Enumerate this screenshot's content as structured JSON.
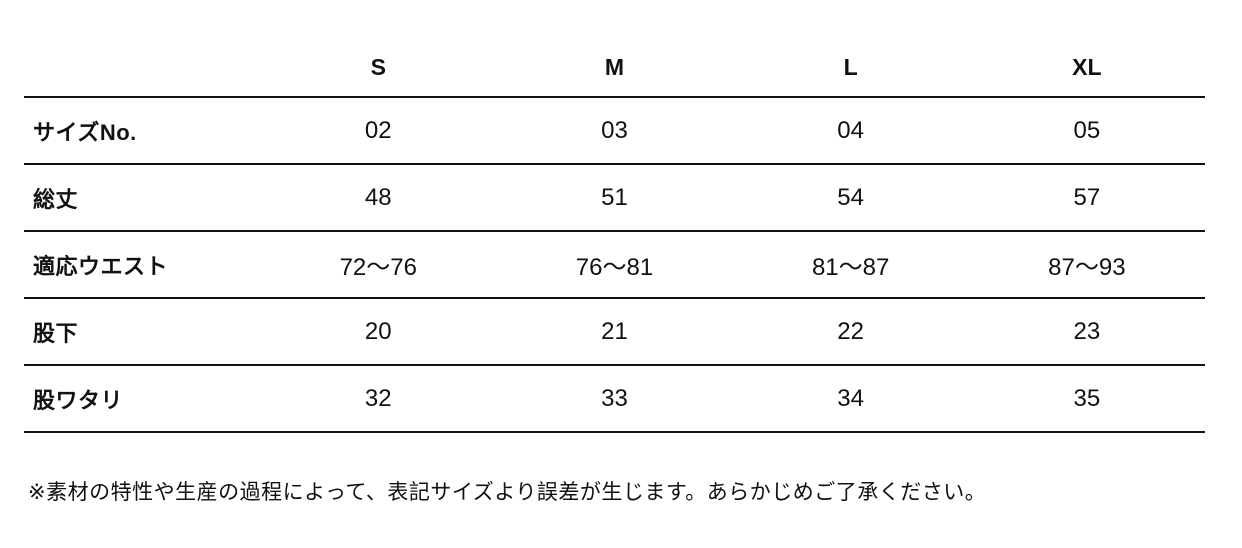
{
  "table": {
    "corner_label": "",
    "columns": [
      "S",
      "M",
      "L",
      "XL"
    ],
    "rows": [
      {
        "label": "サイズNo.",
        "values": [
          "02",
          "03",
          "04",
          "05"
        ]
      },
      {
        "label": "総丈",
        "values": [
          "48",
          "51",
          "54",
          "57"
        ]
      },
      {
        "label": "適応ウエスト",
        "values": [
          "72〜76",
          "76〜81",
          "81〜87",
          "87〜93"
        ]
      },
      {
        "label": "股下",
        "values": [
          "20",
          "21",
          "22",
          "23"
        ]
      },
      {
        "label": "股ワタリ",
        "values": [
          "32",
          "33",
          "34",
          "35"
        ]
      }
    ]
  },
  "note": "※素材の特性や生産の過程によって、表記サイズより誤差が生じます。あらかじめご了承ください。",
  "colors": {
    "text": "#111111",
    "rule": "#111111",
    "background": "#ffffff"
  }
}
